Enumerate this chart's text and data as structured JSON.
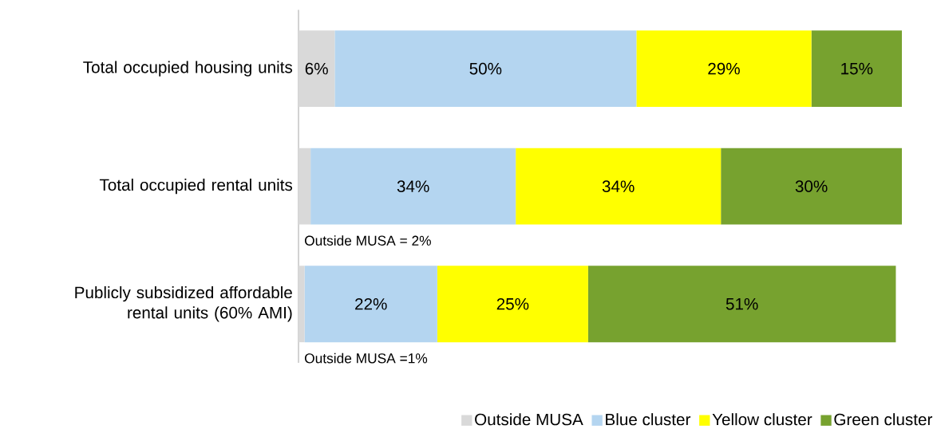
{
  "chart_data": {
    "type": "bar",
    "orientation": "horizontal",
    "stacked": true,
    "categories": [
      "Total occupied housing units",
      "Total occupied rental units",
      "Publicly subsidized affordable rental units (60% AMI)"
    ],
    "series": [
      {
        "name": "Outside MUSA",
        "color": "#d9d9d9",
        "values": [
          6,
          2,
          1
        ],
        "value_labels": [
          "6%",
          null,
          null
        ]
      },
      {
        "name": "Blue cluster",
        "color": "#b4d5f0",
        "values": [
          50,
          34,
          22
        ],
        "value_labels": [
          "50%",
          "34%",
          "22%"
        ]
      },
      {
        "name": "Yellow cluster",
        "color": "#ffff00",
        "values": [
          29,
          34,
          25
        ],
        "value_labels": [
          "29%",
          "34%",
          "25%"
        ]
      },
      {
        "name": "Green cluster",
        "color": "#77a22f",
        "values": [
          15,
          30,
          51
        ],
        "value_labels": [
          "15%",
          "30%",
          "51%"
        ]
      }
    ],
    "xlim": [
      0,
      100
    ],
    "tick_labels": "y",
    "legend": "bottom right",
    "annotations": [
      "Outside MUSA = 2%",
      "Outside MUSA =1%"
    ]
  }
}
